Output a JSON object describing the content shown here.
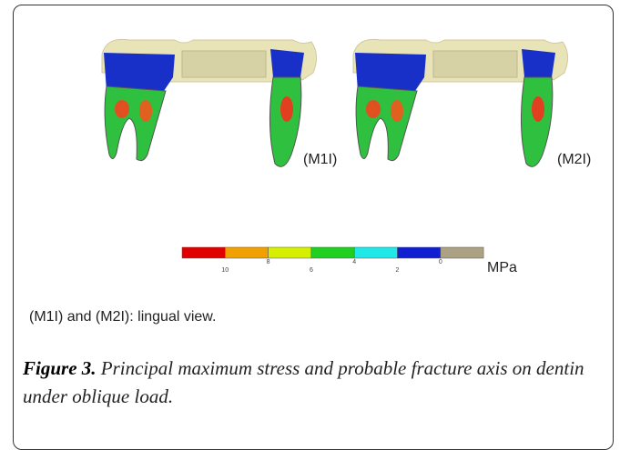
{
  "panels": [
    {
      "label": "(M1I)"
    },
    {
      "label": "(M2I)"
    }
  ],
  "colorbar": {
    "colors": [
      "#e00000",
      "#f0a000",
      "#d4f000",
      "#20d020",
      "#20e8e8",
      "#1020d0",
      "#aaa282"
    ],
    "ticks": [
      10,
      8,
      6,
      4,
      2,
      0
    ],
    "unit": "MPa"
  },
  "note": "(M1I) and (M2I): lingual view.",
  "caption": {
    "label": "Figure 3.",
    "text": "Principal maximum stress and probable fracture axis on dentin under oblique load."
  }
}
